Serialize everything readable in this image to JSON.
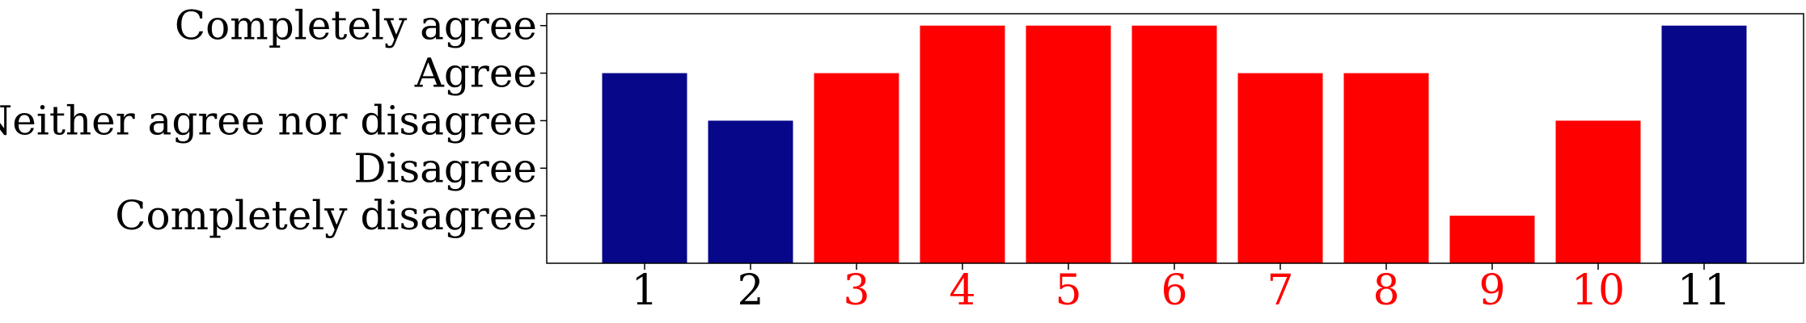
{
  "chart_data": {
    "type": "bar",
    "categories": [
      "1",
      "2",
      "3",
      "4",
      "5",
      "6",
      "7",
      "8",
      "9",
      "10",
      "11"
    ],
    "values": [
      4,
      3,
      4,
      5,
      5,
      5,
      4,
      4,
      1,
      3,
      5
    ],
    "ylim": [
      0,
      5.25
    ],
    "ytick_values": [
      1,
      2,
      3,
      4,
      5
    ],
    "ytick_labels": [
      "Completely disagree",
      "Disagree",
      "Neither agree nor disagree",
      "Agree",
      "Completely agree"
    ],
    "bar_colors": [
      "#07078a",
      "#07078a",
      "#ff0000",
      "#ff0000",
      "#ff0000",
      "#ff0000",
      "#ff0000",
      "#ff0000",
      "#ff0000",
      "#ff0000",
      "#07078a"
    ],
    "xtick_colors": [
      "#000000",
      "#000000",
      "#ff0000",
      "#ff0000",
      "#ff0000",
      "#ff0000",
      "#ff0000",
      "#ff0000",
      "#ff0000",
      "#ff0000",
      "#000000"
    ],
    "grid": false,
    "legend": "none",
    "title": "",
    "xlabel": "",
    "ylabel": ""
  }
}
